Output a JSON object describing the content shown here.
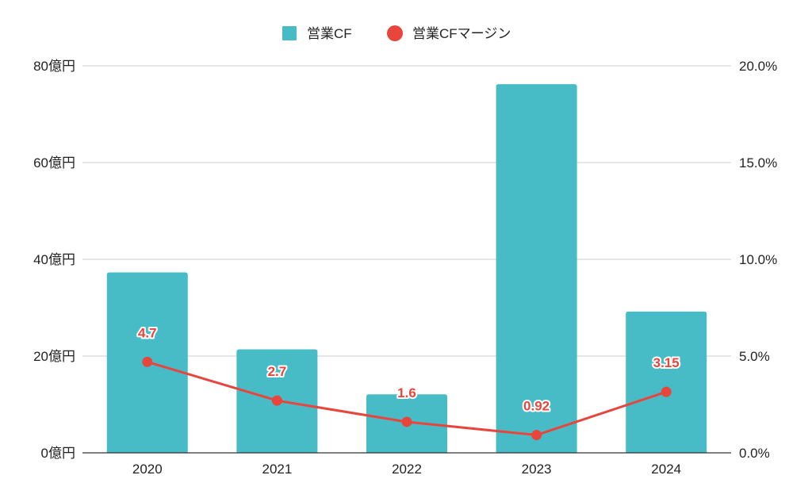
{
  "colors": {
    "bar": "#47bcc6",
    "line": "#e8453c",
    "grid": "#cccccc",
    "axis": "#333333",
    "text": "#222222"
  },
  "chart_data": {
    "type": "bar",
    "categories": [
      "2020",
      "2021",
      "2022",
      "2023",
      "2024"
    ],
    "series": [
      {
        "name": "営業CF",
        "type": "bar",
        "axis": "left",
        "values": [
          37.3,
          21.4,
          12.1,
          76.2,
          29.2
        ],
        "color": "#47bcc6"
      },
      {
        "name": "営業CFマージン",
        "type": "line",
        "axis": "right",
        "values": [
          4.7,
          2.7,
          1.6,
          0.92,
          3.15
        ],
        "data_labels": [
          "4.7",
          "2.7",
          "1.6",
          "0.92",
          "3.15"
        ],
        "color": "#e8453c"
      }
    ],
    "y_left": {
      "ylim": [
        0,
        80
      ],
      "ticks": [
        0,
        20,
        40,
        60,
        80
      ],
      "tick_labels": [
        "0億円",
        "20億円",
        "40億円",
        "60億円",
        "80億円"
      ]
    },
    "y_right": {
      "ylim": [
        0,
        20
      ],
      "ticks": [
        0,
        5,
        10,
        15,
        20
      ],
      "tick_labels": [
        "0.0%",
        "5.0%",
        "10.0%",
        "15.0%",
        "20.0%"
      ]
    },
    "grid": true,
    "legend": "top-center"
  }
}
